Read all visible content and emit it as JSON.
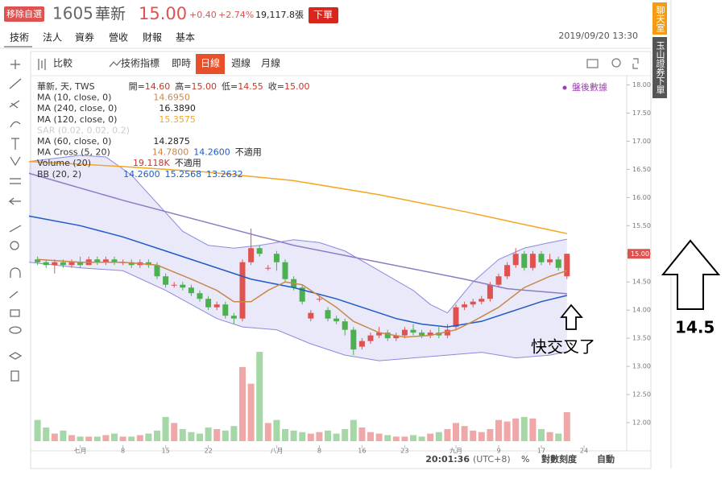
{
  "header": {
    "remove_button": "移除自選",
    "code": "1605",
    "name": "華新",
    "price": "15.00",
    "change": "+0.40",
    "change_pct": "+2.74%",
    "volume": "19,117.8張",
    "order_button": "下單",
    "datetime": "2019/09/20 13:30"
  },
  "tabs": [
    "技術",
    "法人",
    "資券",
    "營收",
    "財報",
    "基本"
  ],
  "toolbar": [
    "比較",
    "技術指標",
    "即時",
    "日線",
    "週線",
    "月線"
  ],
  "after_hours": "盤後數據",
  "legend": [
    {
      "name": "華新, 天, TWS",
      "values": [
        "開=",
        "14.60",
        "高=",
        "15.00",
        "低=",
        "14.55",
        "收=",
        "15.00"
      ],
      "colors": [
        "#333",
        "#c0392b",
        "#333",
        "#c0392b",
        "#333",
        "#c0392b",
        "#333",
        "#c0392b"
      ]
    },
    {
      "name": "MA (10, close, 0)",
      "values": [
        "14.6950"
      ],
      "colors": [
        "#c8894a"
      ]
    },
    {
      "name": "MA (240, close, 0)",
      "values": [
        "16.3890"
      ],
      "colors": [
        "#222"
      ]
    },
    {
      "name": "MA (120, close, 0)",
      "values": [
        "15.3575"
      ],
      "colors": [
        "#f5a623"
      ]
    },
    {
      "name": "SAR (0.02, 0.02, 0.2)",
      "values": [],
      "colors": []
    },
    {
      "name": "MA (60, close, 0)",
      "values": [
        "14.2875"
      ],
      "colors": [
        "#222"
      ]
    },
    {
      "name": "MA Cross (5, 20)",
      "values": [
        "14.7800",
        "14.2600",
        "不適用"
      ],
      "colors": [
        "#c8894a",
        "#1e5bc6",
        "#222"
      ]
    },
    {
      "name": "Volume (20)",
      "values": [
        "19.118K",
        "不適用"
      ],
      "colors": [
        "#c0392b",
        "#222"
      ]
    },
    {
      "name": "BB (20, 2)",
      "values": [
        "14.2600",
        "15.2568",
        "13.2632"
      ],
      "colors": [
        "#1e5bc6",
        "#1e5bc6",
        "#1e5bc6"
      ]
    }
  ],
  "chart_data": {
    "type": "candlestick",
    "xlim": [
      -1,
      69
    ],
    "ylim": [
      11.6,
      18.15
    ],
    "yticks": [
      {
        "value": 12,
        "label": "12.00"
      },
      {
        "value": 12.5,
        "label": "12.50"
      },
      {
        "value": 13,
        "label": "13.00"
      },
      {
        "value": 13.5,
        "label": "13.50"
      },
      {
        "value": 14,
        "label": "14.00"
      },
      {
        "value": 14.5,
        "label": "14.50"
      },
      {
        "value": 15,
        "label": "15.00"
      },
      {
        "value": 15.5,
        "label": "15.50"
      },
      {
        "value": 16,
        "label": "16.00"
      },
      {
        "value": 16.5,
        "label": "16.50"
      },
      {
        "value": 17,
        "label": "17.00"
      },
      {
        "value": 17.5,
        "label": "17.50"
      },
      {
        "value": 18,
        "label": "18.00"
      }
    ],
    "xticks": [
      {
        "value": 5,
        "label": "七月"
      },
      {
        "value": 10,
        "label": "8"
      },
      {
        "value": 15,
        "label": "15"
      },
      {
        "value": 20,
        "label": "22"
      },
      {
        "value": 28,
        "label": "八月"
      },
      {
        "value": 33,
        "label": "8"
      },
      {
        "value": 38,
        "label": "16"
      },
      {
        "value": 43,
        "label": "23"
      },
      {
        "value": 49,
        "label": "九月"
      },
      {
        "value": 54,
        "label": "9"
      },
      {
        "value": 59,
        "label": "17"
      },
      {
        "value": 64,
        "label": "24"
      }
    ],
    "last_price": {
      "value": 15,
      "label": "15.00"
    },
    "up_color": "#e0524f",
    "down_color": "#4caf50",
    "volume_ylim": [
      0,
      100000
    ],
    "candles": {
      "open": [
        14.9,
        14.85,
        14.8,
        14.85,
        14.8,
        14.85,
        14.8,
        14.9,
        14.85,
        14.9,
        14.85,
        14.85,
        14.8,
        14.85,
        14.8,
        14.6,
        14.45,
        14.45,
        14.4,
        14.3,
        14.2,
        14.05,
        14.1,
        13.9,
        13.85,
        14.85,
        15.1,
        14.75,
        15.0,
        14.85,
        14.55,
        14.4,
        13.85,
        14.2,
        14.0,
        13.85,
        13.8,
        13.65,
        13.35,
        13.45,
        13.55,
        13.6,
        13.5,
        13.55,
        13.65,
        13.6,
        13.55,
        13.6,
        13.55,
        13.7,
        14.05,
        14.1,
        14.15,
        14.2,
        14.45,
        14.6,
        14.8,
        15.0,
        14.75,
        15.0,
        14.85,
        14.9,
        14.6
      ],
      "high": [
        14.95,
        14.9,
        14.9,
        14.9,
        14.9,
        14.95,
        14.95,
        14.95,
        14.95,
        14.95,
        14.9,
        14.9,
        14.9,
        14.9,
        14.85,
        14.65,
        14.5,
        14.5,
        14.45,
        14.35,
        14.25,
        14.15,
        14.15,
        13.95,
        14.9,
        15.45,
        15.15,
        14.8,
        15.05,
        14.9,
        14.6,
        14.45,
        14.0,
        14.25,
        14.05,
        13.9,
        13.85,
        13.7,
        13.5,
        13.6,
        13.7,
        13.65,
        13.6,
        13.7,
        13.75,
        13.65,
        13.65,
        13.7,
        13.75,
        14.1,
        14.15,
        14.2,
        14.25,
        14.5,
        14.65,
        14.85,
        15.1,
        15.05,
        15.05,
        15.05,
        15.0,
        14.95,
        15.0
      ],
      "low": [
        14.8,
        14.75,
        14.65,
        14.75,
        14.75,
        14.75,
        14.8,
        14.8,
        14.8,
        14.8,
        14.8,
        14.75,
        14.75,
        14.75,
        14.55,
        14.4,
        14.4,
        14.35,
        14.25,
        14.15,
        14.0,
        14.0,
        13.85,
        13.75,
        13.8,
        14.8,
        14.95,
        14.7,
        14.7,
        14.5,
        14.35,
        14.1,
        13.8,
        14.15,
        13.8,
        13.75,
        13.55,
        13.2,
        13.3,
        13.4,
        13.5,
        13.45,
        13.45,
        13.5,
        13.55,
        13.5,
        13.5,
        13.5,
        13.5,
        13.65,
        14.0,
        14.05,
        14.1,
        14.15,
        14.4,
        14.55,
        14.75,
        14.7,
        14.7,
        14.8,
        14.8,
        14.7,
        14.55
      ],
      "close": [
        14.85,
        14.8,
        14.85,
        14.8,
        14.85,
        14.8,
        14.9,
        14.85,
        14.9,
        14.85,
        14.85,
        14.8,
        14.85,
        14.8,
        14.6,
        14.45,
        14.45,
        14.4,
        14.3,
        14.2,
        14.05,
        14.1,
        13.9,
        13.85,
        14.85,
        15.1,
        15.0,
        14.75,
        14.85,
        14.55,
        14.4,
        14.15,
        13.95,
        14.2,
        13.85,
        13.8,
        13.65,
        13.3,
        13.45,
        13.55,
        13.6,
        13.5,
        13.55,
        13.65,
        13.6,
        13.55,
        13.6,
        13.55,
        13.65,
        14.05,
        14.1,
        14.15,
        14.2,
        14.45,
        14.6,
        14.8,
        15.0,
        14.75,
        15.0,
        14.85,
        14.9,
        14.75,
        15.0
      ],
      "volume": [
        14000,
        9000,
        5000,
        7000,
        4000,
        3000,
        3000,
        3000,
        4000,
        5000,
        3000,
        3000,
        4000,
        5000,
        7000,
        16000,
        12000,
        8000,
        6000,
        5000,
        9000,
        8000,
        7000,
        10000,
        49000,
        38000,
        59000,
        12000,
        14000,
        8000,
        7000,
        6000,
        5000,
        6000,
        7000,
        5000,
        8000,
        14000,
        9000,
        6000,
        5000,
        4000,
        3000,
        3000,
        4000,
        3000,
        5000,
        6000,
        8000,
        12000,
        10000,
        7000,
        6000,
        8000,
        14000,
        13000,
        15000,
        16000,
        15000,
        8000,
        6000,
        5000,
        19118
      ]
    },
    "lines": [
      {
        "color": "#f5a623",
        "x": [
          -1,
          10,
          20,
          30,
          40,
          50,
          57,
          62
        ],
        "values": [
          16.64,
          16.55,
          16.45,
          16.3,
          16.05,
          15.75,
          15.52,
          15.36
        ]
      },
      {
        "color": "#8e7cc3",
        "x": [
          -1,
          10,
          20,
          30,
          40,
          50,
          55,
          62
        ],
        "values": [
          16.43,
          15.95,
          15.55,
          15.15,
          14.85,
          14.55,
          14.38,
          14.29
        ]
      },
      {
        "color": "#1e5bc6",
        "x": [
          -1,
          5,
          10,
          15,
          20,
          25,
          30,
          35,
          38,
          42,
          45,
          48,
          52,
          56,
          59,
          62
        ],
        "values": [
          15.67,
          15.5,
          15.3,
          15.05,
          14.8,
          14.55,
          14.4,
          14.2,
          14.05,
          13.85,
          13.75,
          13.7,
          13.8,
          14.0,
          14.15,
          14.26
        ]
      },
      {
        "color": "#c8894a",
        "x": [
          0,
          5,
          10,
          14,
          18,
          21,
          23,
          25,
          27,
          29,
          31,
          33,
          35,
          37,
          40,
          43,
          46,
          49,
          51,
          54,
          57,
          60,
          62
        ],
        "values": [
          14.9,
          14.85,
          14.85,
          14.8,
          14.55,
          14.35,
          14.15,
          14.15,
          14.35,
          14.5,
          14.45,
          14.25,
          14.05,
          13.8,
          13.6,
          13.52,
          13.55,
          13.65,
          13.8,
          14.05,
          14.4,
          14.6,
          14.7
        ]
      }
    ],
    "band": {
      "fill": "rgba(120,120,220,0.16)",
      "stroke": "#8a8ae0",
      "upper": {
        "x": [
          -1,
          5,
          8,
          11,
          14,
          17,
          20,
          23,
          26,
          30,
          33,
          36,
          40,
          44,
          46,
          48,
          51,
          54,
          57,
          60,
          62
        ],
        "values": [
          16.64,
          16.75,
          16.72,
          16.4,
          15.9,
          15.4,
          15.15,
          15.1,
          15.15,
          15.25,
          15.2,
          15.05,
          14.7,
          14.35,
          14.1,
          13.95,
          14.5,
          14.9,
          15.1,
          15.2,
          15.26
        ]
      },
      "lower": {
        "x": [
          -1,
          5,
          10,
          15,
          18,
          21,
          24,
          28,
          32,
          36,
          40,
          44,
          48,
          52,
          56,
          60,
          62
        ],
        "values": [
          14.85,
          14.75,
          14.7,
          14.35,
          14.1,
          13.85,
          13.7,
          13.65,
          13.4,
          13.2,
          13.1,
          13.15,
          13.2,
          13.25,
          13.15,
          13.2,
          13.26
        ]
      }
    }
  },
  "footer": {
    "clock": "20:01:36",
    "timezone": "(UTC+8)",
    "percent": "%",
    "log_scale": "對數刻度",
    "auto": "自動"
  },
  "side": {
    "chat": "聊天室",
    "order": "玉山證券下單"
  },
  "annotations": {
    "cross": "快交叉了",
    "level": "14.5"
  }
}
